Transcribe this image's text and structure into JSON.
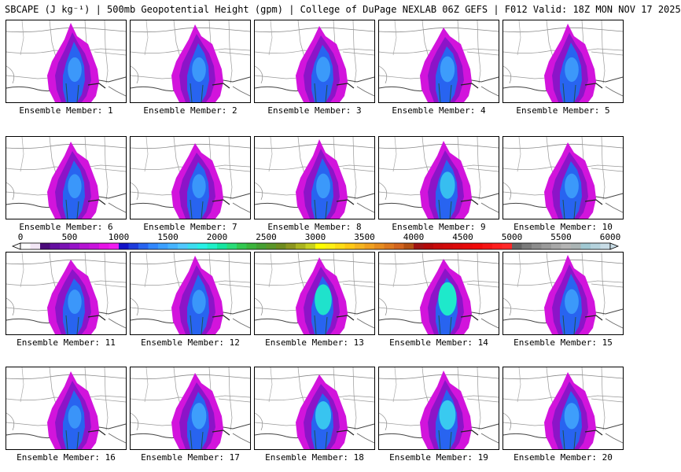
{
  "header": {
    "title": "SBCAPE (J kg⁻¹) | 500mb Geopotential Height (gpm) | College of DuPage NEXLAB 06Z GEFS | F012 Valid: 18Z MON NOV 17 2025"
  },
  "panels": [
    {
      "label": "Ensemble Member: 1",
      "intensity": 0.35
    },
    {
      "label": "Ensemble Member: 2",
      "intensity": 0.35
    },
    {
      "label": "Ensemble Member: 3",
      "intensity": 0.38
    },
    {
      "label": "Ensemble Member: 4",
      "intensity": 0.4
    },
    {
      "label": "Ensemble Member: 5",
      "intensity": 0.35
    },
    {
      "label": "Ensemble Member: 6",
      "intensity": 0.33
    },
    {
      "label": "Ensemble Member: 7",
      "intensity": 0.33
    },
    {
      "label": "Ensemble Member: 8",
      "intensity": 0.36
    },
    {
      "label": "Ensemble Member: 9",
      "intensity": 0.45
    },
    {
      "label": "Ensemble Member: 10",
      "intensity": 0.36
    },
    {
      "label": "Ensemble Member: 11",
      "intensity": 0.34
    },
    {
      "label": "Ensemble Member: 12",
      "intensity": 0.33
    },
    {
      "label": "Ensemble Member: 13",
      "intensity": 0.6
    },
    {
      "label": "Ensemble Member: 14",
      "intensity": 0.7
    },
    {
      "label": "Ensemble Member: 15",
      "intensity": 0.36
    },
    {
      "label": "Ensemble Member: 16",
      "intensity": 0.3
    },
    {
      "label": "Ensemble Member: 17",
      "intensity": 0.42
    },
    {
      "label": "Ensemble Member: 18",
      "intensity": 0.5
    },
    {
      "label": "Ensemble Member: 19",
      "intensity": 0.55
    },
    {
      "label": "Ensemble Member: 20",
      "intensity": 0.42
    }
  ],
  "colorbar": {
    "ticks": [
      "0",
      "500",
      "1000",
      "1500",
      "2000",
      "2500",
      "3000",
      "3500",
      "4000",
      "4500",
      "5000",
      "5500",
      "6000"
    ],
    "min": 0,
    "max": 6000,
    "colors": [
      "#ffffff",
      "#f2e6f5",
      "#4b0a7a",
      "#640fa0",
      "#7a14b4",
      "#9614c8",
      "#b414d2",
      "#c814dc",
      "#e614e6",
      "#f01ef0",
      "#1414c8",
      "#1e3cdc",
      "#2864f0",
      "#3288ff",
      "#3ca0ff",
      "#46b4ff",
      "#50c8ff",
      "#3cdcf0",
      "#28f0e6",
      "#1ef0c8",
      "#14e6a0",
      "#28dc78",
      "#32c850",
      "#3cb43c",
      "#46a032",
      "#5a9628",
      "#6e8c1e",
      "#8c961e",
      "#aab41e",
      "#c8d21e",
      "#ffff00",
      "#fff014",
      "#ffdc14",
      "#ffc814",
      "#f5b41e",
      "#f0a01e",
      "#e68c1e",
      "#dc781e",
      "#d2641e",
      "#b45014",
      "#a01414",
      "#b40a0a",
      "#c80a0a",
      "#d20a0a",
      "#dc0a0a",
      "#e60a0a",
      "#f00a0a",
      "#f51414",
      "#ff1e1e",
      "#ff2828",
      "#646464",
      "#7a7a7a",
      "#8c8c8c",
      "#9a9a9a",
      "#a8a8a8",
      "#b4b4b4",
      "#aab4b4",
      "#a0c8d2",
      "#b4d2dc",
      "#c8dce6"
    ]
  }
}
